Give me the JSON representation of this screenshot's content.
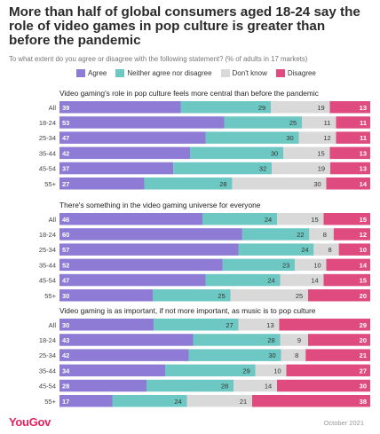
{
  "title": "More than half of global consumers aged 18-24 say the role of video games in pop culture is greater than before the pandemic",
  "subtitle": "To what extent do you agree or disagree with the following statement? (% of adults in 17 markets)",
  "legend": [
    {
      "label": "Agree",
      "color": "#8d7bd6"
    },
    {
      "label": "Neither agree nor disagree",
      "color": "#6dc8c3"
    },
    {
      "label": "Don't know",
      "color": "#d9d9d9"
    },
    {
      "label": "Disagree",
      "color": "#df4b7e"
    }
  ],
  "footer": {
    "logo": "YouGov",
    "date": "October 2021"
  },
  "chart_data": {
    "type": "bar",
    "stacked": true,
    "orientation": "horizontal",
    "series_names": [
      "Agree",
      "Neither agree nor disagree",
      "Don't know",
      "Disagree"
    ],
    "colors": [
      "#8d7bd6",
      "#6dc8c3",
      "#d9d9d9",
      "#df4b7e"
    ],
    "panels": [
      {
        "title": "Video gaming's role in pop culture feels more central than before the pandemic",
        "categories": [
          "All",
          "18-24",
          "25-34",
          "35-44",
          "45-54",
          "55+"
        ],
        "values": [
          [
            39,
            29,
            19,
            13
          ],
          [
            53,
            25,
            11,
            11
          ],
          [
            47,
            30,
            12,
            11
          ],
          [
            42,
            30,
            15,
            13
          ],
          [
            37,
            32,
            19,
            13
          ],
          [
            27,
            28,
            30,
            14
          ]
        ]
      },
      {
        "title": "There's something in the video gaming universe for everyone",
        "categories": [
          "All",
          "18-24",
          "25-34",
          "35-44",
          "45-54",
          "55+"
        ],
        "values": [
          [
            46,
            24,
            15,
            15
          ],
          [
            60,
            22,
            8,
            12
          ],
          [
            57,
            24,
            8,
            10
          ],
          [
            52,
            23,
            10,
            14
          ],
          [
            47,
            24,
            14,
            15
          ],
          [
            30,
            25,
            25,
            20
          ]
        ]
      },
      {
        "title": "Video gaming is as important, if not more important, as music is to pop culture",
        "categories": [
          "All",
          "18-24",
          "25-34",
          "35-44",
          "45-54",
          "55+"
        ],
        "values": [
          [
            30,
            27,
            13,
            29
          ],
          [
            43,
            28,
            9,
            20
          ],
          [
            42,
            30,
            8,
            21
          ],
          [
            34,
            29,
            10,
            27
          ],
          [
            28,
            28,
            14,
            30
          ],
          [
            17,
            24,
            21,
            38
          ]
        ]
      }
    ]
  }
}
